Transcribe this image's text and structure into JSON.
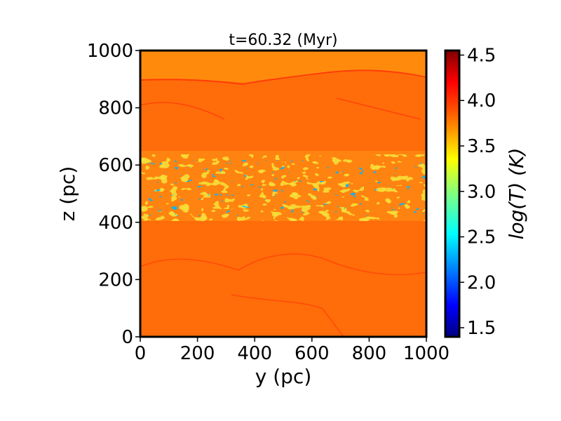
{
  "chart_data": {
    "type": "heatmap",
    "title": "t=60.32 (Myr)",
    "xlabel": "y (pc)",
    "ylabel": "z (pc)",
    "xlim": [
      0,
      1000
    ],
    "ylim": [
      0,
      1000
    ],
    "xticks": [
      "0",
      "200",
      "400",
      "600",
      "800",
      "1000"
    ],
    "yticks": [
      "0",
      "200",
      "400",
      "600",
      "800",
      "1000"
    ],
    "colorbar": {
      "label": "log(T) (K)",
      "range": [
        1.4,
        4.55
      ],
      "ticks": [
        "1.5",
        "2.0",
        "2.5",
        "3.0",
        "3.5",
        "4.0",
        "4.5"
      ],
      "colormap": "jet"
    },
    "field": {
      "background_logT": 3.85,
      "cold_layer_center_z": 500,
      "cold_layer_halfwidth_z": 70,
      "cold_min_logT": 1.5
    }
  }
}
